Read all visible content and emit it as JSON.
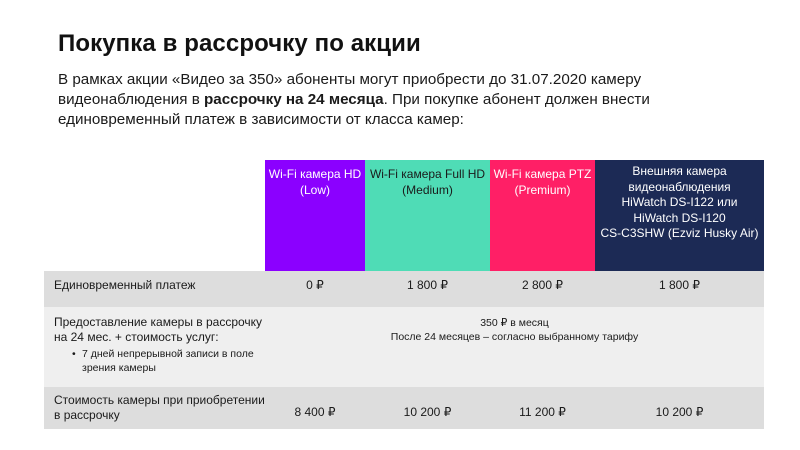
{
  "slide": {
    "title": "Покупка в рассрочку по акции",
    "intro_part1": "В рамках акции «Видео за 350» абоненты могут приобрести до 31.07.2020 камеру видеонаблюдения в ",
    "intro_bold": "рассрочку на 24 месяца",
    "intro_part2": ". При покупке абонент должен внести единовременный платеж в зависимости от класса камер:"
  },
  "table": {
    "headers": [
      {
        "label": "Wi-Fi камера HD (Low)",
        "color": "#8b00ff"
      },
      {
        "label": "Wi-Fi камера Full HD (Medium)",
        "color": "#4fdcb6"
      },
      {
        "label": "Wi-Fi камера PTZ (Premium)",
        "color": "#ff1f66"
      },
      {
        "label_lines": [
          "Внешняя камера видеонаблюдения",
          "HiWatch DS-I122 или",
          "HiWatch DS-I120",
          "CS-C3SHW (Ezviz Husky Air)"
        ],
        "color": "#1c2a55"
      }
    ],
    "row_payment": {
      "label": "Единовременный платеж",
      "values": [
        "0 ₽",
        "1 800 ₽",
        "2 800 ₽",
        "1 800 ₽"
      ]
    },
    "row_installment": {
      "label": "Предоставление камеры в рассрочку на 24 мес. + стоимость услуг:",
      "bullet": "7 дней непрерывной записи в поле зрения камеры",
      "merged_line1": "350 ₽ в месяц",
      "merged_line2": "После 24 месяцев – согласно выбранному тарифу"
    },
    "row_total": {
      "label": "Стоимость камеры при приобретении в рассрочку",
      "values": [
        "8 400 ₽",
        "10 200 ₽",
        "11 200 ₽",
        "10 200 ₽"
      ]
    }
  }
}
